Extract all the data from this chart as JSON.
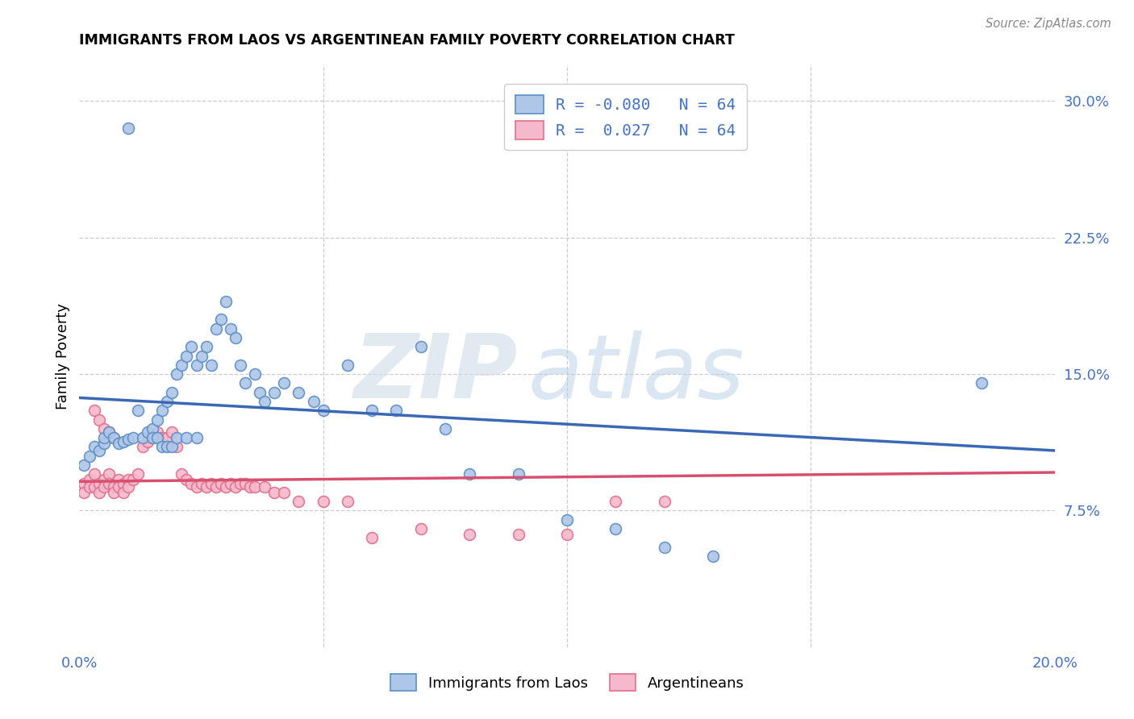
{
  "title": "IMMIGRANTS FROM LAOS VS ARGENTINEAN FAMILY POVERTY CORRELATION CHART",
  "source": "Source: ZipAtlas.com",
  "ylabel": "Family Poverty",
  "x_min": 0.0,
  "x_max": 0.2,
  "y_min": 0.0,
  "y_max": 0.32,
  "x_ticks": [
    0.0,
    0.05,
    0.1,
    0.15,
    0.2
  ],
  "x_tick_labels": [
    "0.0%",
    "",
    "",
    "",
    "20.0%"
  ],
  "y_ticks": [
    0.075,
    0.15,
    0.225,
    0.3
  ],
  "y_tick_labels": [
    "7.5%",
    "15.0%",
    "22.5%",
    "30.0%"
  ],
  "legend_r1": "-0.080",
  "legend_n1": "64",
  "legend_r2": "0.027",
  "legend_n2": "64",
  "legend_label1": "Immigrants from Laos",
  "legend_label2": "Argentineans",
  "color_blue_fill": "#aec6e8",
  "color_blue_edge": "#5b8ec4",
  "color_pink_fill": "#f5b8cc",
  "color_pink_edge": "#e0708a",
  "color_blue_line": "#3a68b4",
  "color_pink_line": "#d85070",
  "color_text_blue": "#4472c4",
  "blue_scatter_x": [
    0.001,
    0.002,
    0.003,
    0.004,
    0.005,
    0.005,
    0.006,
    0.007,
    0.008,
    0.009,
    0.01,
    0.011,
    0.012,
    0.013,
    0.014,
    0.015,
    0.016,
    0.017,
    0.018,
    0.019,
    0.02,
    0.021,
    0.022,
    0.023,
    0.024,
    0.025,
    0.026,
    0.027,
    0.028,
    0.029,
    0.03,
    0.031,
    0.032,
    0.033,
    0.034,
    0.036,
    0.037,
    0.038,
    0.04,
    0.042,
    0.045,
    0.048,
    0.05,
    0.055,
    0.06,
    0.065,
    0.07,
    0.075,
    0.08,
    0.09,
    0.1,
    0.11,
    0.12,
    0.13,
    0.015,
    0.016,
    0.017,
    0.018,
    0.019,
    0.02,
    0.022,
    0.024,
    0.185,
    0.01
  ],
  "blue_scatter_y": [
    0.1,
    0.105,
    0.11,
    0.108,
    0.112,
    0.115,
    0.118,
    0.115,
    0.112,
    0.113,
    0.114,
    0.115,
    0.13,
    0.115,
    0.118,
    0.12,
    0.125,
    0.13,
    0.135,
    0.14,
    0.15,
    0.155,
    0.16,
    0.165,
    0.155,
    0.16,
    0.165,
    0.155,
    0.175,
    0.18,
    0.19,
    0.175,
    0.17,
    0.155,
    0.145,
    0.15,
    0.14,
    0.135,
    0.14,
    0.145,
    0.14,
    0.135,
    0.13,
    0.155,
    0.13,
    0.13,
    0.165,
    0.12,
    0.095,
    0.095,
    0.07,
    0.065,
    0.055,
    0.05,
    0.115,
    0.115,
    0.11,
    0.11,
    0.11,
    0.115,
    0.115,
    0.115,
    0.145,
    0.285
  ],
  "pink_scatter_x": [
    0.001,
    0.001,
    0.002,
    0.002,
    0.003,
    0.003,
    0.004,
    0.004,
    0.005,
    0.005,
    0.006,
    0.006,
    0.007,
    0.007,
    0.008,
    0.008,
    0.009,
    0.009,
    0.01,
    0.01,
    0.011,
    0.012,
    0.013,
    0.014,
    0.015,
    0.016,
    0.017,
    0.018,
    0.019,
    0.02,
    0.021,
    0.022,
    0.023,
    0.024,
    0.025,
    0.026,
    0.027,
    0.028,
    0.029,
    0.03,
    0.031,
    0.032,
    0.033,
    0.034,
    0.035,
    0.036,
    0.038,
    0.04,
    0.042,
    0.045,
    0.05,
    0.055,
    0.06,
    0.07,
    0.08,
    0.09,
    0.1,
    0.11,
    0.003,
    0.004,
    0.005,
    0.006,
    0.007,
    0.12
  ],
  "pink_scatter_y": [
    0.09,
    0.085,
    0.092,
    0.088,
    0.095,
    0.088,
    0.09,
    0.085,
    0.092,
    0.088,
    0.095,
    0.09,
    0.088,
    0.085,
    0.092,
    0.088,
    0.09,
    0.085,
    0.092,
    0.088,
    0.092,
    0.095,
    0.11,
    0.113,
    0.115,
    0.118,
    0.115,
    0.115,
    0.118,
    0.11,
    0.095,
    0.092,
    0.09,
    0.088,
    0.09,
    0.088,
    0.09,
    0.088,
    0.09,
    0.088,
    0.09,
    0.088,
    0.09,
    0.09,
    0.088,
    0.088,
    0.088,
    0.085,
    0.085,
    0.08,
    0.08,
    0.08,
    0.06,
    0.065,
    0.062,
    0.062,
    0.062,
    0.08,
    0.13,
    0.125,
    0.12,
    0.118,
    0.115,
    0.08
  ],
  "blue_line_x0": 0.0,
  "blue_line_y0": 0.137,
  "blue_line_x1": 0.2,
  "blue_line_y1": 0.108,
  "pink_line_x0": 0.0,
  "pink_line_y0": 0.091,
  "pink_line_x1": 0.2,
  "pink_line_y1": 0.096
}
